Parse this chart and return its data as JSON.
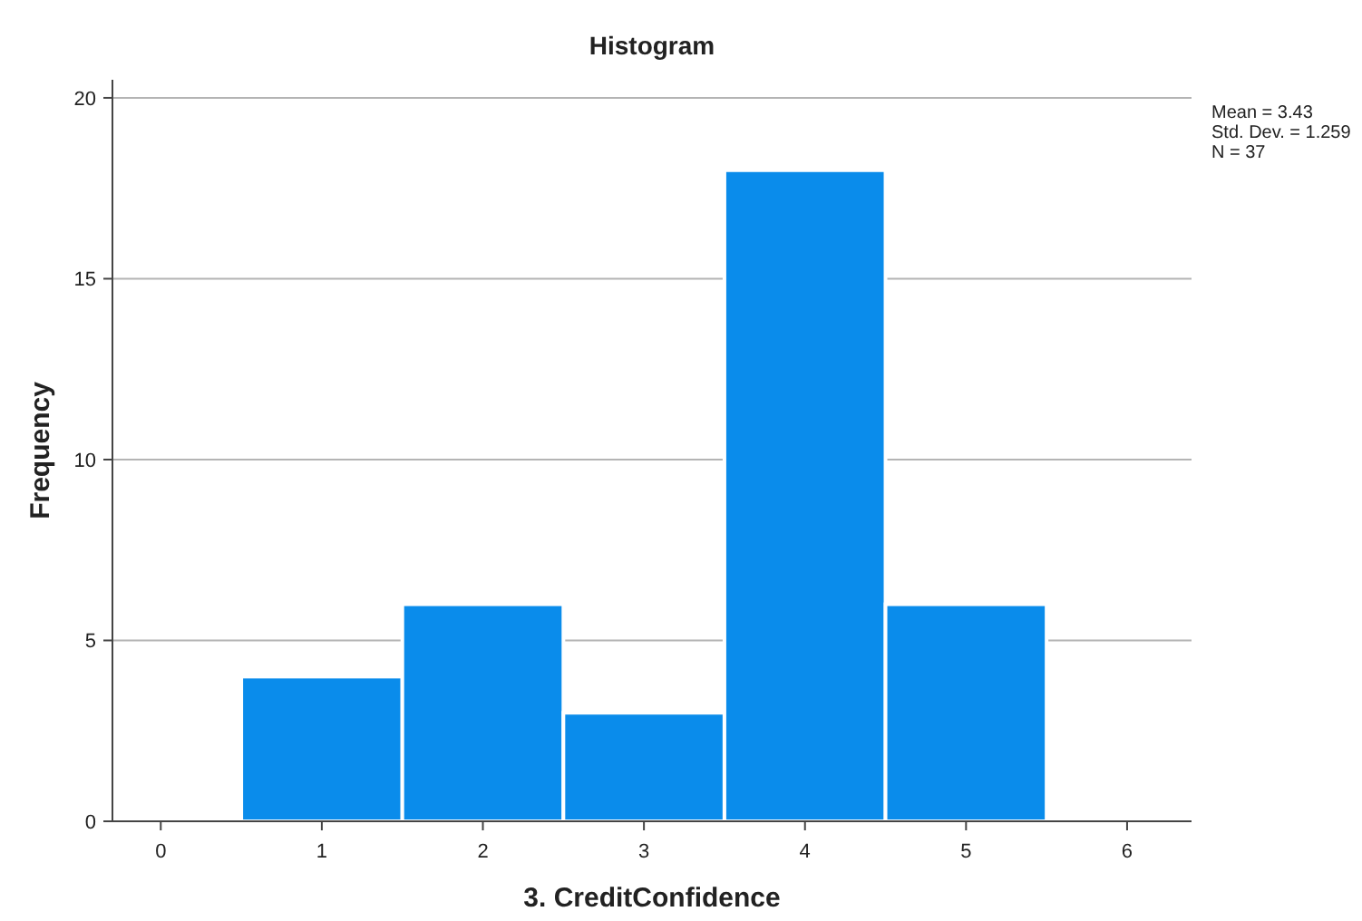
{
  "chart_data": {
    "type": "histogram",
    "title": "Histogram",
    "xlabel": "3. CreditConfidence",
    "ylabel": "Frequency",
    "bins": [
      0.5,
      1.5,
      2.5,
      3.5,
      4.5,
      5.5
    ],
    "values": [
      4,
      6,
      3,
      18,
      6
    ],
    "color": "#0a8ceb",
    "xlim": [
      -0.3,
      6.4
    ],
    "xticks": [
      0,
      1,
      2,
      3,
      4,
      5,
      6
    ],
    "ylim": [
      0,
      20.5
    ],
    "yticks": [
      0,
      5,
      10,
      15,
      20
    ],
    "grid": "y",
    "annotations": [
      "Mean = 3.43",
      "Std. Dev. = 1.259",
      "N = 37"
    ]
  }
}
